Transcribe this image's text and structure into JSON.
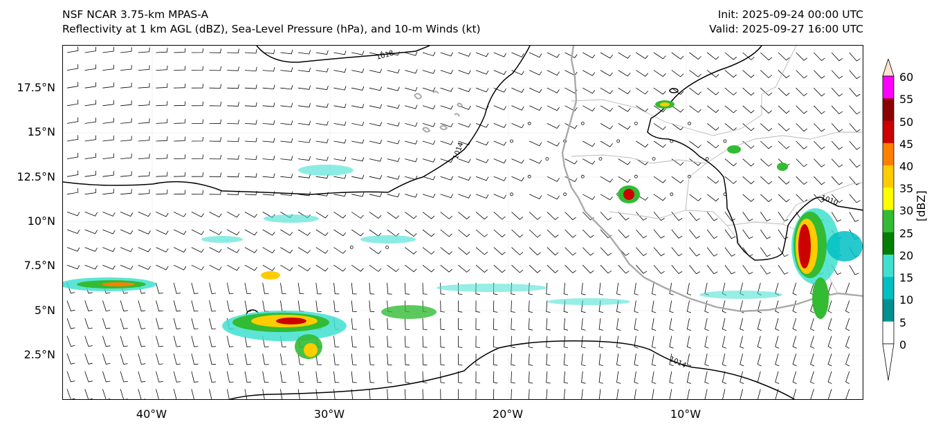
{
  "header": {
    "model_title": "NSF NCAR 3.75-km MPAS-A",
    "field_title": "Reflectivity at 1 km AGL (dBZ), Sea-Level Pressure (hPa), and 10-m Winds (kt)",
    "init_time": "Init: 2025-09-24 00:00 UTC",
    "valid_time": "Valid: 2025-09-27 16:00 UTC"
  },
  "axes": {
    "lat_labels": [
      "17.5°N",
      "15°N",
      "12.5°N",
      "10°N",
      "7.5°N",
      "5°N",
      "2.5°N"
    ],
    "lon_labels": [
      "40°W",
      "30°W",
      "20°W",
      "10°W"
    ]
  },
  "isobars": {
    "labels": [
      "1018",
      "1014",
      "1010",
      "1014"
    ]
  },
  "colorbar": {
    "unit_label": "[dBZ]",
    "ticks": [
      "60",
      "55",
      "50",
      "45",
      "40",
      "35",
      "30",
      "25",
      "20",
      "15",
      "10",
      "5",
      "0"
    ],
    "colors": [
      "#ff00ff",
      "#8b0000",
      "#cc0000",
      "#ff7f00",
      "#ffcc00",
      "#ffff00",
      "#33bb33",
      "#007f00",
      "#40e0d0",
      "#00bfc4",
      "#009090"
    ],
    "top_color": "#ffe4d0",
    "bottom_color": "#ffffff"
  },
  "colors": {
    "coast": "#a9a9a9",
    "border": "#b0b0b0",
    "isobar": "#000000"
  }
}
